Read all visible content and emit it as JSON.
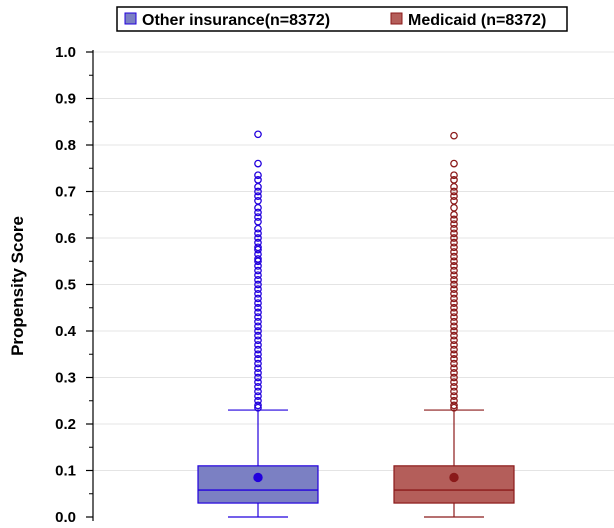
{
  "chart_data": {
    "type": "box",
    "ylabel": "Propensity Score",
    "xlabel": "",
    "ylim": [
      0,
      1.0
    ],
    "yticks": [
      "0.0",
      "0.1",
      "0.2",
      "0.3",
      "0.4",
      "0.5",
      "0.6",
      "0.7",
      "0.8",
      "0.9",
      "1.0"
    ],
    "grid": true,
    "legend_position": "top",
    "series": [
      {
        "name": "Other insurance(n=8372)",
        "color": "#2200dd",
        "fill": "#7b80c3",
        "min": 0.0,
        "q1": 0.03,
        "median": 0.058,
        "mean": 0.085,
        "q3": 0.11,
        "whisker_high": 0.23,
        "outliers": [
          0.823,
          0.76,
          0.735,
          0.725,
          0.71,
          0.7,
          0.69,
          0.68,
          0.665,
          0.655,
          0.645,
          0.635,
          0.62,
          0.61,
          0.6,
          0.59,
          0.58,
          0.575,
          0.565,
          0.555,
          0.55,
          0.54,
          0.53,
          0.52,
          0.51,
          0.5,
          0.49,
          0.48,
          0.47,
          0.46,
          0.45,
          0.44,
          0.43,
          0.42,
          0.41,
          0.4,
          0.39,
          0.38,
          0.37,
          0.36,
          0.35,
          0.34,
          0.33,
          0.32,
          0.31,
          0.3,
          0.29,
          0.28,
          0.27,
          0.26,
          0.25,
          0.24,
          0.235
        ]
      },
      {
        "name": "Medicaid (n=8372)",
        "color": "#8b1a1a",
        "fill": "#b45e5a",
        "min": 0.0,
        "q1": 0.03,
        "median": 0.058,
        "mean": 0.085,
        "q3": 0.11,
        "whisker_high": 0.23,
        "outliers": [
          0.82,
          0.76,
          0.735,
          0.725,
          0.71,
          0.7,
          0.69,
          0.68,
          0.665,
          0.65,
          0.64,
          0.63,
          0.62,
          0.61,
          0.6,
          0.59,
          0.58,
          0.57,
          0.56,
          0.55,
          0.54,
          0.53,
          0.52,
          0.51,
          0.5,
          0.49,
          0.48,
          0.47,
          0.46,
          0.45,
          0.44,
          0.43,
          0.42,
          0.41,
          0.4,
          0.39,
          0.38,
          0.37,
          0.36,
          0.35,
          0.34,
          0.33,
          0.32,
          0.31,
          0.3,
          0.29,
          0.28,
          0.27,
          0.26,
          0.25,
          0.24,
          0.235
        ]
      }
    ]
  }
}
